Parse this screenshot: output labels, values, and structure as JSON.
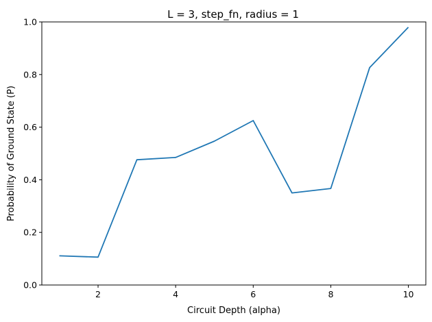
{
  "chart_data": {
    "type": "line",
    "title": "L = 3, step_fn, radius = 1",
    "xlabel": "Circuit Depth (alpha)",
    "ylabel": "Probability of Ground State (P)",
    "xlim": [
      0.55,
      10.45
    ],
    "ylim": [
      0.0,
      1.0
    ],
    "x_ticks": [
      2,
      4,
      6,
      8,
      10
    ],
    "y_ticks": [
      0.0,
      0.2,
      0.4,
      0.6,
      0.8,
      1.0
    ],
    "x_tick_labels": [
      "2",
      "4",
      "6",
      "8",
      "10"
    ],
    "y_tick_labels": [
      "0.0",
      "0.2",
      "0.4",
      "0.6",
      "0.8",
      "1.0"
    ],
    "grid": false,
    "series": [
      {
        "color": "#1f77b4",
        "x": [
          1,
          2,
          3,
          4,
          5,
          6,
          7,
          8,
          9,
          10
        ],
        "y": [
          0.111,
          0.106,
          0.476,
          0.485,
          0.547,
          0.625,
          0.35,
          0.367,
          0.826,
          0.98
        ]
      }
    ]
  }
}
